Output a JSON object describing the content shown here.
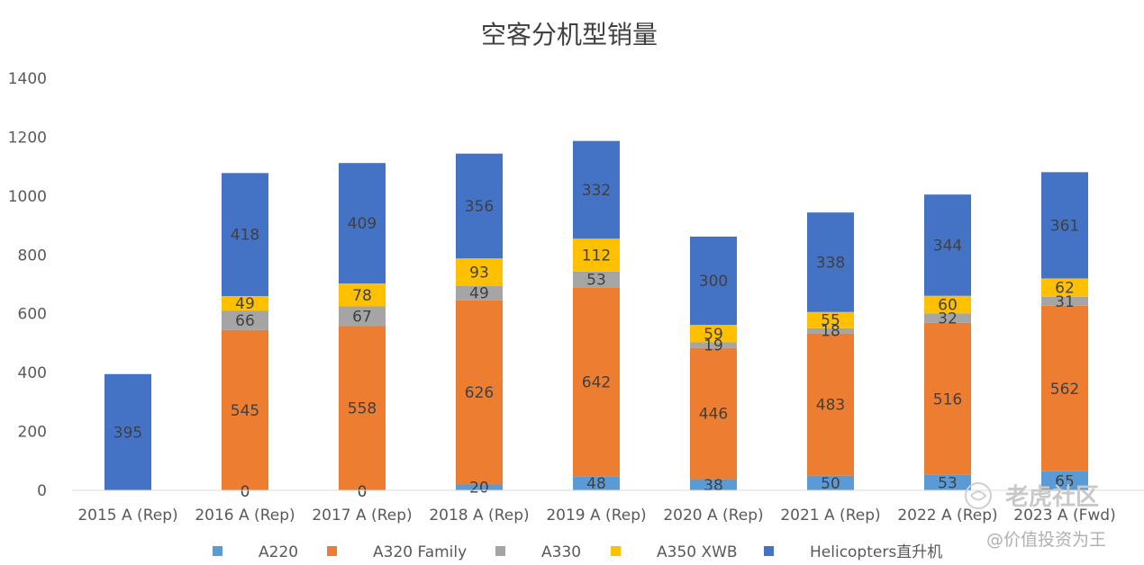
{
  "chart_data": {
    "type": "bar",
    "stacked": true,
    "title": "空客分机型销量",
    "categories": [
      "2015 A (Rep)",
      "2016 A (Rep)",
      "2017 A (Rep)",
      "2018 A (Rep)",
      "2019 A (Rep)",
      "2020 A (Rep)",
      "2021 A (Rep)",
      "2022 A (Rep)",
      "2023 A (Fwd)"
    ],
    "ylim": [
      0,
      1400
    ],
    "yticks": [
      0,
      200,
      400,
      600,
      800,
      1000,
      1200,
      1400
    ],
    "grid": false,
    "legend_position": "bottom",
    "series": [
      {
        "name": "A220",
        "color": "#5B9BD5",
        "values": [
          null,
          null,
          null,
          20,
          48,
          38,
          50,
          53,
          65
        ]
      },
      {
        "name": "A320 Family",
        "color": "#ED7D31",
        "values": [
          null,
          545,
          558,
          626,
          642,
          446,
          483,
          516,
          562
        ]
      },
      {
        "name": "A330",
        "color": "#A5A5A5",
        "values": [
          null,
          66,
          67,
          49,
          53,
          19,
          18,
          32,
          31
        ]
      },
      {
        "name": "A350 XWB",
        "color": "#FFC000",
        "values": [
          null,
          49,
          78,
          93,
          112,
          59,
          55,
          60,
          62
        ]
      },
      {
        "name": "Helicopters直升机",
        "color": "#4472C4",
        "values": [
          395,
          418,
          409,
          356,
          332,
          300,
          338,
          344,
          361
        ]
      }
    ],
    "extra_labels": [
      {
        "category": "2016 A (Rep)",
        "text": "0"
      },
      {
        "category": "2017 A (Rep)",
        "text": "0"
      }
    ]
  },
  "watermark": {
    "brand": "老虎社区",
    "handle": "@价值投资为王"
  }
}
